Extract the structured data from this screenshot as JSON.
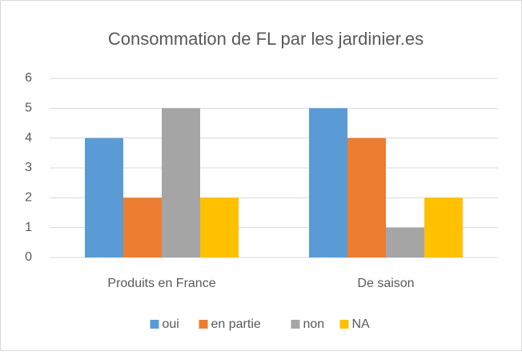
{
  "chart_data": {
    "type": "bar",
    "title": "Consommation de FL par les jardinier.es",
    "categories": [
      "Produits en France",
      "De saison"
    ],
    "series": [
      {
        "name": "oui",
        "color": "#5b9bd5",
        "values": [
          4,
          5
        ]
      },
      {
        "name": "en partie",
        "color": "#ed7d31",
        "values": [
          2,
          4
        ]
      },
      {
        "name": "non",
        "color": "#a5a5a5",
        "values": [
          5,
          1
        ]
      },
      {
        "name": "NA",
        "color": "#ffc000",
        "values": [
          2,
          2
        ]
      }
    ],
    "ylim": [
      0,
      6
    ],
    "yticks": [
      0,
      1,
      2,
      3,
      4,
      5,
      6
    ],
    "grid": true,
    "legend": "bottom"
  }
}
